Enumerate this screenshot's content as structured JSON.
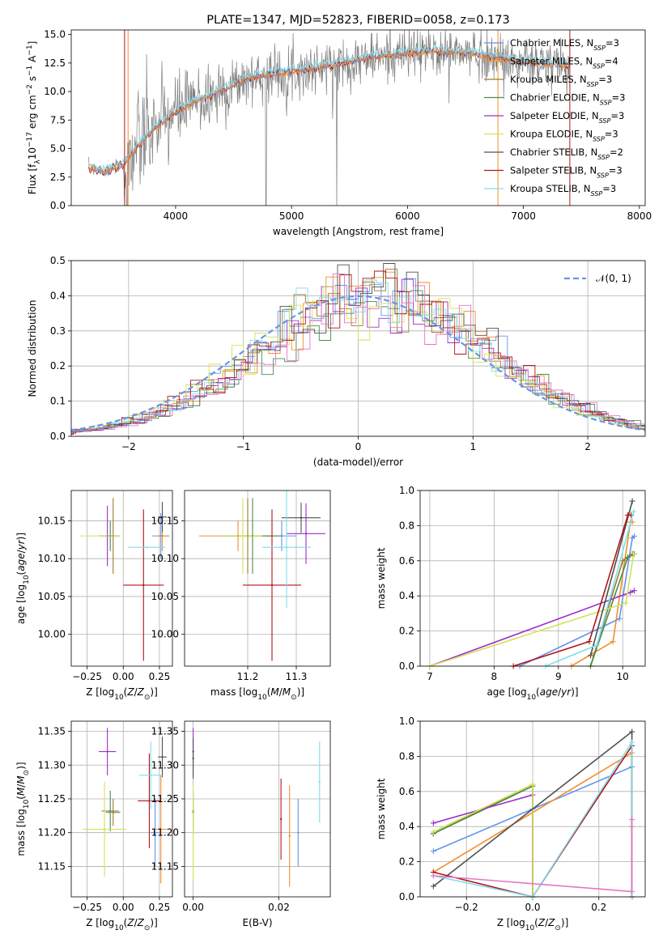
{
  "colors": [
    "#6495ed",
    "#f28e2b",
    "#a0782a",
    "#4b8b4b",
    "#9b30c9",
    "#d4e157",
    "#505050",
    "#b0151a",
    "#80deea"
  ],
  "chart_data": [
    {
      "id": "spectrum",
      "type": "line",
      "title": "PLATE=1347, MJD=52823, FIBERID=0058, z=0.173",
      "xlabel": "wavelength [Angstrom, rest frame]",
      "ylabel_html": "Flux [f<tspan baseline-shift=\"sub\" font-size=\"9\">λ</tspan>10<tspan baseline-shift=\"super\" font-size=\"9\">−17</tspan> erg cm<tspan baseline-shift=\"super\" font-size=\"9\">−2</tspan> s<tspan baseline-shift=\"super\" font-size=\"9\">−1</tspan> A<tspan baseline-shift=\"super\" font-size=\"9\">−1</tspan>]",
      "xlim": [
        3100,
        8050
      ],
      "ylim": [
        0,
        15.4
      ],
      "xticks": [
        4000,
        5000,
        6000,
        7000,
        8000
      ],
      "yticks": [
        0,
        2.5,
        5,
        7.5,
        10,
        12.5,
        15
      ],
      "yticklabels": [
        "0.0",
        "2.5",
        "5.0",
        "7.5",
        "10.0",
        "12.5",
        "15.0"
      ],
      "continuum": {
        "x": [
          3250,
          3400,
          3550,
          3700,
          3850,
          4000,
          4150,
          4300,
          4450,
          4600,
          4750,
          4900,
          5050,
          5200,
          5350,
          5500,
          5650,
          5800,
          5950,
          6100,
          6250,
          6400,
          6550,
          6700,
          6850,
          7000,
          7150,
          7300,
          7400
        ],
        "y": [
          3.3,
          3.0,
          3.6,
          5.5,
          7.0,
          8.2,
          9.0,
          9.6,
          10.3,
          11.0,
          11.4,
          11.6,
          11.8,
          12.0,
          12.3,
          12.6,
          12.9,
          13.1,
          13.3,
          13.4,
          13.5,
          13.4,
          13.3,
          13.1,
          12.8,
          12.6,
          12.4,
          12.3,
          12.2
        ]
      },
      "legend": [
        {
          "label": "Chabrier MILES, N",
          "sub": "SSP",
          "suffix": "=3"
        },
        {
          "label": "Salpeter MILES, N",
          "sub": "SSP",
          "suffix": "=4"
        },
        {
          "label": "Kroupa MILES, N",
          "sub": "SSP",
          "suffix": "=3"
        },
        {
          "label": "Chabrier ELODIE, N",
          "sub": "SSP",
          "suffix": "=3"
        },
        {
          "label": "Salpeter ELODIE, N",
          "sub": "SSP",
          "suffix": "=3"
        },
        {
          "label": "Kroupa ELODIE, N",
          "sub": "SSP",
          "suffix": "=3"
        },
        {
          "label": "Chabrier STELIB, N",
          "sub": "SSP",
          "suffix": "=2"
        },
        {
          "label": "Salpeter STELIB, N",
          "sub": "SSP",
          "suffix": "=3"
        },
        {
          "label": "Kroupa STELIB, N",
          "sub": "SSP",
          "suffix": "=3"
        }
      ],
      "legend_position": "right"
    },
    {
      "id": "residuals",
      "type": "line",
      "xlabel": "(data-model)/error",
      "ylabel": "Normed distribution",
      "xlim": [
        -2.5,
        2.5
      ],
      "ylim": [
        0,
        0.5
      ],
      "xticks": [
        -2,
        -1,
        0,
        1,
        2
      ],
      "yticks": [
        0,
        0.1,
        0.2,
        0.3,
        0.4,
        0.5
      ],
      "xticklabels": [
        "−2",
        "−1",
        "0",
        "1",
        "2"
      ],
      "yticklabels": [
        "0.0",
        "0.1",
        "0.2",
        "0.3",
        "0.4",
        "0.5"
      ],
      "bin_width": 0.1,
      "reference_curve": "N(0,1)",
      "legend": "𝒩(0, 1)",
      "legend_position": "top-right",
      "grid": true
    },
    {
      "id": "age-vs-Z",
      "type": "scatter",
      "xlabel_html": "Z [log<tspan baseline-shift=\"sub\" font-size=\"9\">10</tspan>(<tspan font-style=\"italic\">Z</tspan>/<tspan font-style=\"italic\">Z</tspan><tspan baseline-shift=\"sub\" font-size=\"9\">⊙</tspan>)]",
      "ylabel_html": "age  [log<tspan baseline-shift=\"sub\" font-size=\"9\">10</tspan>(<tspan font-style=\"italic\">age</tspan>/<tspan font-style=\"italic\">yr</tspan>)]",
      "xlim": [
        -0.36,
        0.34
      ],
      "ylim": [
        9.958,
        10.19
      ],
      "xticks": [
        -0.25,
        0,
        0.25
      ],
      "xticklabels": [
        "−0.25",
        "0.00",
        "0.25"
      ],
      "yticks": [
        10.0,
        10.05,
        10.1,
        10.15
      ],
      "yticklabels": [
        "10.00",
        "10.05",
        "10.10",
        "10.15"
      ],
      "points": [
        {
          "x": 0.26,
          "y": 10.13,
          "xerr": 0.06,
          "yerr": 0.03,
          "c": 0
        },
        {
          "x": 0.27,
          "y": 10.13,
          "xerr": 0.04,
          "yerr": 0.02,
          "c": 1
        },
        {
          "x": -0.07,
          "y": 10.13,
          "xerr": 0.05,
          "yerr": 0.05,
          "c": 2
        },
        {
          "x": -0.09,
          "y": 10.13,
          "xerr": 0.06,
          "yerr": 0.02,
          "c": 3
        },
        {
          "x": -0.11,
          "y": 10.13,
          "xerr": 0.05,
          "yerr": 0.04,
          "c": 4
        },
        {
          "x": -0.16,
          "y": 10.13,
          "xerr": 0.14,
          "yerr": 0.0,
          "c": 5
        },
        {
          "x": 0.27,
          "y": 10.155,
          "xerr": 0.03,
          "yerr": 0.02,
          "c": 6
        },
        {
          "x": 0.14,
          "y": 10.065,
          "xerr": 0.14,
          "yerr": 0.1,
          "c": 7
        },
        {
          "x": 0.16,
          "y": 10.115,
          "xerr": 0.13,
          "yerr": 0.0,
          "c": 8
        }
      ],
      "grid": true
    },
    {
      "id": "age-vs-mass",
      "type": "scatter",
      "xlabel_html": "mass [log<tspan baseline-shift=\"sub\" font-size=\"9\">10</tspan>(<tspan font-style=\"italic\">M</tspan>/<tspan font-style=\"italic\">M</tspan><tspan baseline-shift=\"sub\" font-size=\"9\">⊙</tspan>)]",
      "xlim": [
        11.07,
        11.37
      ],
      "ylim": [
        9.958,
        10.19
      ],
      "xticks": [
        11.2,
        11.3
      ],
      "xticklabels": [
        "11.2",
        "11.3"
      ],
      "yticks": [
        10.0,
        10.05,
        10.1,
        10.15
      ],
      "yticklabels": [
        "10.00",
        "10.05",
        "10.10",
        "10.15"
      ],
      "points": [
        {
          "x": 11.27,
          "y": 10.13,
          "xerr": 0.03,
          "yerr": 0.02,
          "c": 0
        },
        {
          "x": 11.18,
          "y": 10.13,
          "xerr": 0.08,
          "yerr": 0.02,
          "c": 1
        },
        {
          "x": 11.2,
          "y": 10.13,
          "xerr": 0.05,
          "yerr": 0.05,
          "c": 2
        },
        {
          "x": 11.21,
          "y": 10.13,
          "xerr": 0.06,
          "yerr": 0.05,
          "c": 3
        },
        {
          "x": 11.32,
          "y": 10.133,
          "xerr": 0.04,
          "yerr": 0.04,
          "c": 4
        },
        {
          "x": 11.19,
          "y": 10.13,
          "xerr": 0.04,
          "yerr": 0.05,
          "c": 5
        },
        {
          "x": 11.31,
          "y": 10.154,
          "xerr": 0.04,
          "yerr": 0.02,
          "c": 6
        },
        {
          "x": 11.25,
          "y": 10.065,
          "xerr": 0.06,
          "yerr": 0.1,
          "c": 7
        },
        {
          "x": 11.28,
          "y": 10.115,
          "xerr": 0.05,
          "yerr": 0.08,
          "c": 8
        }
      ],
      "grid": true
    },
    {
      "id": "massweight-vs-age",
      "type": "line",
      "xlabel_html": "age  [log<tspan baseline-shift=\"sub\" font-size=\"9\">10</tspan>(<tspan font-style=\"italic\">age</tspan>/<tspan font-style=\"italic\">yr</tspan>)]",
      "ylabel": "mass weight",
      "xlim": [
        6.85,
        10.35
      ],
      "ylim": [
        0,
        1
      ],
      "xticks": [
        7,
        8,
        9,
        10
      ],
      "xticklabels": [
        "7",
        "8",
        "9",
        "10"
      ],
      "yticks": [
        0,
        0.2,
        0.4,
        0.6,
        0.8,
        1
      ],
      "yticklabels": [
        "0.0",
        "0.2",
        "0.4",
        "0.6",
        "0.8",
        "1.0"
      ],
      "series": [
        {
          "c": 0,
          "x": [
            8.4,
            9.95,
            10.15,
            10.18
          ],
          "y": [
            0,
            0.27,
            0.73,
            0.74
          ]
        },
        {
          "c": 1,
          "x": [
            9.2,
            9.85,
            10.12,
            10.15
          ],
          "y": [
            0,
            0.14,
            0.82,
            0.82
          ]
        },
        {
          "c": 2,
          "x": [
            9.5,
            10.0,
            10.15
          ],
          "y": [
            0,
            0.6,
            0.64
          ]
        },
        {
          "c": 3,
          "x": [
            9.5,
            10.08,
            10.18
          ],
          "y": [
            0,
            0.62,
            0.64
          ]
        },
        {
          "c": 4,
          "x": [
            7.0,
            10.12,
            10.18
          ],
          "y": [
            0,
            0.42,
            0.43
          ]
        },
        {
          "c": 5,
          "x": [
            7.0,
            10.05,
            10.17
          ],
          "y": [
            0,
            0.36,
            0.64
          ]
        },
        {
          "c": 6,
          "x": [
            9.5,
            10.15
          ],
          "y": [
            0.06,
            0.94
          ]
        },
        {
          "c": 7,
          "x": [
            8.3,
            9.48,
            10.08,
            10.13
          ],
          "y": [
            0,
            0.14,
            0.86,
            0.86
          ]
        },
        {
          "c": 8,
          "x": [
            8.8,
            9.6,
            10.17
          ],
          "y": [
            0,
            0.12,
            0.88
          ]
        }
      ],
      "grid": true
    },
    {
      "id": "mass-vs-Z",
      "type": "scatter",
      "xlabel_html": "Z [log<tspan baseline-shift=\"sub\" font-size=\"9\">10</tspan>(<tspan font-style=\"italic\">Z</tspan>/<tspan font-style=\"italic\">Z</tspan><tspan baseline-shift=\"sub\" font-size=\"9\">⊙</tspan>)]",
      "ylabel_html": "mass [log<tspan baseline-shift=\"sub\" font-size=\"9\">10</tspan>(<tspan font-style=\"italic\">M</tspan>/<tspan font-style=\"italic\">M</tspan><tspan baseline-shift=\"sub\" font-size=\"9\">⊙</tspan>)]",
      "xlim": [
        -0.36,
        0.34
      ],
      "ylim": [
        11.105,
        11.365
      ],
      "xticks": [
        -0.25,
        0,
        0.25
      ],
      "xticklabels": [
        "−0.25",
        "0.00",
        "0.25"
      ],
      "yticks": [
        11.15,
        11.2,
        11.25,
        11.3,
        11.35
      ],
      "yticklabels": [
        "11.15",
        "11.20",
        "11.25",
        "11.30",
        "11.35"
      ],
      "points": [
        {
          "x": 0.22,
          "y": 11.2,
          "xerr": 0.03,
          "yerr": 0.05,
          "c": 0
        },
        {
          "x": 0.26,
          "y": 11.205,
          "xerr": 0.04,
          "yerr": 0.08,
          "c": 1
        },
        {
          "x": -0.07,
          "y": 11.23,
          "xerr": 0.05,
          "yerr": 0.02,
          "c": 2
        },
        {
          "x": -0.09,
          "y": 11.232,
          "xerr": 0.06,
          "yerr": 0.03,
          "c": 3
        },
        {
          "x": -0.11,
          "y": 11.32,
          "xerr": 0.06,
          "yerr": 0.035,
          "c": 4
        },
        {
          "x": -0.13,
          "y": 11.205,
          "xerr": 0.15,
          "yerr": 0.07,
          "c": 5
        },
        {
          "x": 0.27,
          "y": 11.312,
          "xerr": 0.03,
          "yerr": 0.03,
          "c": 6
        },
        {
          "x": 0.18,
          "y": 11.247,
          "xerr": 0.08,
          "yerr": 0.07,
          "c": 7
        },
        {
          "x": 0.19,
          "y": 11.285,
          "xerr": 0.08,
          "yerr": 0.05,
          "c": 8
        }
      ],
      "grid": true
    },
    {
      "id": "mass-vs-ebv",
      "type": "scatter",
      "xlabel": "E(B-V)",
      "xlim": [
        -0.002,
        0.032
      ],
      "ylim": [
        11.105,
        11.365
      ],
      "xticks": [
        0,
        0.02
      ],
      "xticklabels": [
        "0.00",
        "0.02"
      ],
      "yticks": [
        11.15,
        11.2,
        11.25,
        11.3,
        11.35
      ],
      "yticklabels": [
        "11.15",
        "11.20",
        "11.25",
        "11.30",
        "11.35"
      ],
      "points": [
        {
          "x": 0.0245,
          "y": 11.2,
          "xerr": 0,
          "yerr": 0.05,
          "c": 0
        },
        {
          "x": 0.0225,
          "y": 11.195,
          "xerr": 0,
          "yerr": 0.075,
          "c": 1
        },
        {
          "x": 0.0,
          "y": 11.23,
          "xerr": 0,
          "yerr": 0.02,
          "c": 2
        },
        {
          "x": 0.0,
          "y": 11.232,
          "xerr": 0,
          "yerr": 0.03,
          "c": 3
        },
        {
          "x": 0.0,
          "y": 11.32,
          "xerr": 0,
          "yerr": 0.035,
          "c": 4
        },
        {
          "x": 0.0,
          "y": 11.2,
          "xerr": 0,
          "yerr": 0.07,
          "c": 5
        },
        {
          "x": 0.0,
          "y": 11.31,
          "xerr": 0,
          "yerr": 0.03,
          "c": 6
        },
        {
          "x": 0.0205,
          "y": 11.22,
          "xerr": 0,
          "yerr": 0.06,
          "c": 7
        },
        {
          "x": 0.0295,
          "y": 11.275,
          "xerr": 0,
          "yerr": 0.06,
          "c": 8
        }
      ],
      "grid": true
    },
    {
      "id": "massweight-vs-Z",
      "type": "line",
      "xlabel_html": "Z [log<tspan baseline-shift=\"sub\" font-size=\"9\">10</tspan>(<tspan font-style=\"italic\">Z</tspan>/<tspan font-style=\"italic\">Z</tspan><tspan baseline-shift=\"sub\" font-size=\"9\">⊙</tspan>)]",
      "ylabel": "mass weight",
      "xlim": [
        -0.34,
        0.34
      ],
      "ylim": [
        0,
        1
      ],
      "xticks": [
        -0.2,
        0,
        0.2
      ],
      "xticklabels": [
        "−0.2",
        "0.0",
        "0.2"
      ],
      "yticks": [
        0,
        0.2,
        0.4,
        0.6,
        0.8,
        1
      ],
      "yticklabels": [
        "0.0",
        "0.2",
        "0.4",
        "0.6",
        "0.8",
        "1.0"
      ],
      "series": [
        {
          "c": 0,
          "x": [
            -0.3,
            0.0,
            0.3,
            0.3
          ],
          "y": [
            0.26,
            0.5,
            0.74,
            0.0
          ]
        },
        {
          "c": 1,
          "x": [
            -0.3,
            0.3,
            0.3,
            0.3
          ],
          "y": [
            0.14,
            0.82,
            0.4,
            0.0
          ]
        },
        {
          "c": 2,
          "x": [
            -0.3,
            0.0,
            0.0
          ],
          "y": [
            0.36,
            0.64,
            0.0
          ]
        },
        {
          "c": 3,
          "x": [
            -0.3,
            0.0,
            0.0
          ],
          "y": [
            0.36,
            0.63,
            0.0
          ]
        },
        {
          "c": 4,
          "x": [
            -0.3,
            0.0,
            0.0
          ],
          "y": [
            0.42,
            0.58,
            0.0
          ]
        },
        {
          "c": 5,
          "x": [
            -0.3,
            0.0,
            0.0
          ],
          "y": [
            0.37,
            0.64,
            0.0
          ]
        },
        {
          "c": 6,
          "x": [
            -0.3,
            0.3,
            0.3
          ],
          "y": [
            0.06,
            0.94,
            0.0
          ]
        },
        {
          "c": 7,
          "x": [
            -0.3,
            0.0,
            0.3,
            0.3
          ],
          "y": [
            0.14,
            0.0,
            0.86,
            0.0
          ]
        },
        {
          "c": 8,
          "x": [
            -0.3,
            0.0,
            0.3,
            0.3
          ],
          "y": [
            0.12,
            0.0,
            0.88,
            0.0
          ]
        },
        {
          "c": "#e377c2",
          "x": [
            -0.3,
            0.3,
            0.3
          ],
          "y": [
            0.12,
            0.03,
            0.44
          ]
        }
      ],
      "grid": true
    }
  ]
}
